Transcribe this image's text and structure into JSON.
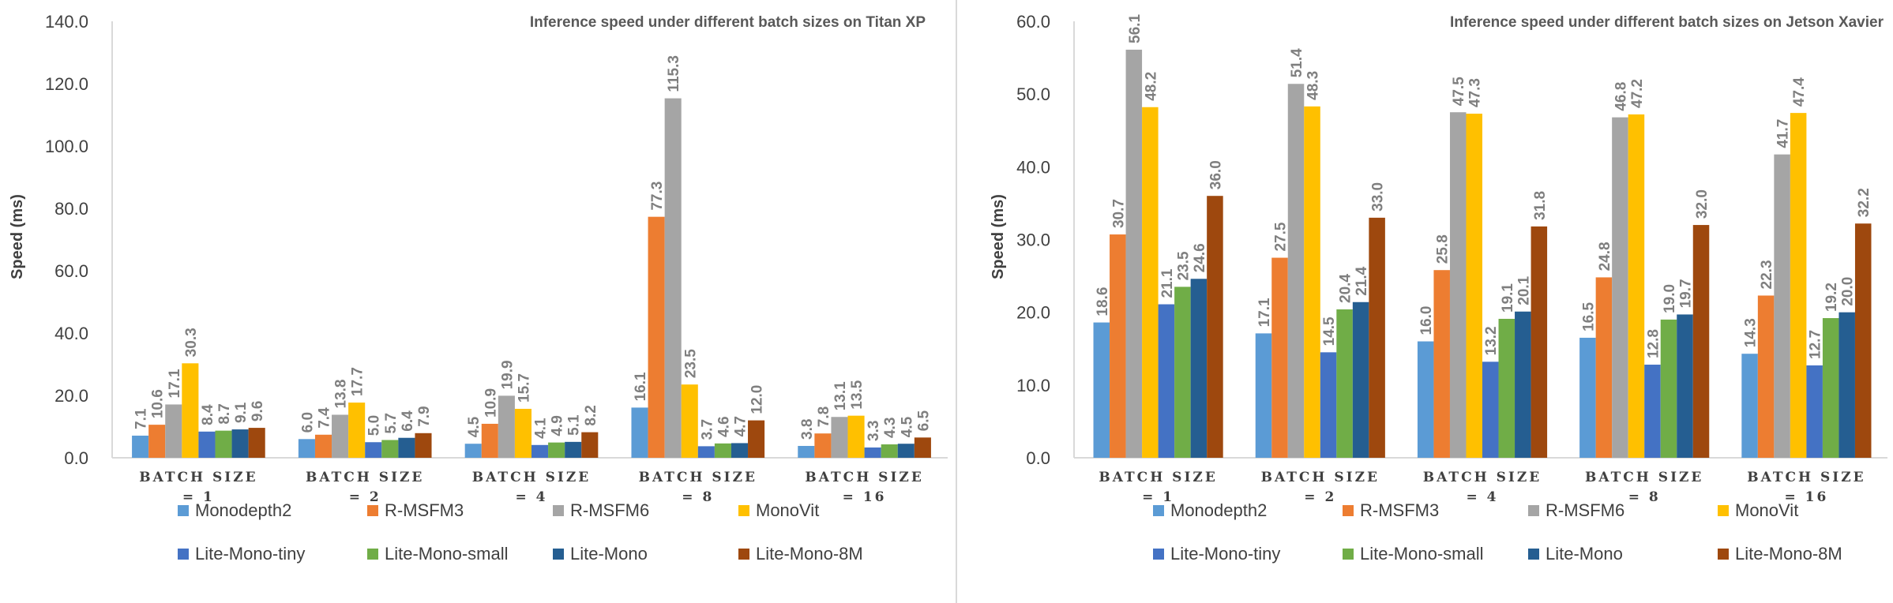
{
  "chart_data": [
    {
      "type": "bar",
      "title": "Inference speed under different batch sizes on Titan XP",
      "xlabel": "",
      "ylabel": "Speed (ms)",
      "ylim": [
        0,
        140
      ],
      "yticks": [
        "0.0",
        "20.0",
        "40.0",
        "60.0",
        "80.0",
        "100.0",
        "120.0",
        "140.0"
      ],
      "categories": [
        "BATCH SIZE = 1",
        "BATCH SIZE = 2",
        "BATCH SIZE = 4",
        "BATCH SIZE = 8",
        "BATCH SIZE = 16"
      ],
      "category_lines": [
        [
          "BATCH SIZE",
          "= 1"
        ],
        [
          "BATCH SIZE",
          "= 2"
        ],
        [
          "BATCH SIZE",
          "= 4"
        ],
        [
          "BATCH SIZE",
          "= 8"
        ],
        [
          "BATCH SIZE",
          "= 16"
        ]
      ],
      "series": [
        {
          "name": "Monodepth2",
          "color": "#5b9bd5",
          "values": [
            7.1,
            6.0,
            4.5,
            16.1,
            3.8
          ]
        },
        {
          "name": "R-MSFM3",
          "color": "#ed7d31",
          "values": [
            10.6,
            7.4,
            10.9,
            77.3,
            7.8
          ]
        },
        {
          "name": "R-MSFM6",
          "color": "#a5a5a5",
          "values": [
            17.1,
            13.8,
            19.9,
            115.3,
            13.1
          ]
        },
        {
          "name": "MonoVit",
          "color": "#ffc000",
          "values": [
            30.3,
            17.7,
            15.7,
            23.5,
            13.5
          ]
        },
        {
          "name": "Lite-Mono-tiny",
          "color": "#4472c4",
          "values": [
            8.4,
            5.0,
            4.1,
            3.7,
            3.3
          ]
        },
        {
          "name": "Lite-Mono-small",
          "color": "#70ad47",
          "values": [
            8.7,
            5.7,
            4.9,
            4.6,
            4.3
          ]
        },
        {
          "name": "Lite-Mono",
          "color": "#255e91",
          "values": [
            9.1,
            6.4,
            5.1,
            4.7,
            4.5
          ]
        },
        {
          "name": "Lite-Mono-8M",
          "color": "#9e480e",
          "values": [
            9.6,
            7.9,
            8.2,
            12.0,
            6.5
          ]
        }
      ],
      "legend": "bottom",
      "grid": false
    },
    {
      "type": "bar",
      "title": "Inference speed under different batch sizes on Jetson Xavier",
      "xlabel": "",
      "ylabel": "Speed (ms)",
      "ylim": [
        0,
        60
      ],
      "yticks": [
        "0.0",
        "10.0",
        "20.0",
        "30.0",
        "40.0",
        "50.0",
        "60.0"
      ],
      "categories": [
        "BATCH SIZE = 1",
        "BATCH SIZE = 2",
        "BATCH SIZE = 4",
        "BATCH SIZE = 8",
        "BATCH SIZE = 16"
      ],
      "category_lines": [
        [
          "BATCH SIZE",
          "= 1"
        ],
        [
          "BATCH SIZE",
          "= 2"
        ],
        [
          "BATCH SIZE",
          "= 4"
        ],
        [
          "BATCH SIZE",
          "= 8"
        ],
        [
          "BATCH SIZE",
          "= 16"
        ]
      ],
      "series": [
        {
          "name": "Monodepth2",
          "color": "#5b9bd5",
          "values": [
            18.6,
            17.1,
            16.0,
            16.5,
            14.3
          ]
        },
        {
          "name": "R-MSFM3",
          "color": "#ed7d31",
          "values": [
            30.7,
            27.5,
            25.8,
            24.8,
            22.3
          ]
        },
        {
          "name": "R-MSFM6",
          "color": "#a5a5a5",
          "values": [
            56.1,
            51.4,
            47.5,
            46.8,
            41.7
          ]
        },
        {
          "name": "MonoVit",
          "color": "#ffc000",
          "values": [
            48.2,
            48.3,
            47.3,
            47.2,
            47.4
          ]
        },
        {
          "name": "Lite-Mono-tiny",
          "color": "#4472c4",
          "values": [
            21.1,
            14.5,
            13.2,
            12.8,
            12.7
          ]
        },
        {
          "name": "Lite-Mono-small",
          "color": "#70ad47",
          "values": [
            23.5,
            20.4,
            19.1,
            19.0,
            19.2
          ]
        },
        {
          "name": "Lite-Mono",
          "color": "#255e91",
          "values": [
            24.6,
            21.4,
            20.1,
            19.7,
            20.0
          ]
        },
        {
          "name": "Lite-Mono-8M",
          "color": "#9e480e",
          "values": [
            36.0,
            33.0,
            31.8,
            32.0,
            32.2
          ]
        }
      ],
      "legend": "bottom",
      "grid": false
    }
  ]
}
